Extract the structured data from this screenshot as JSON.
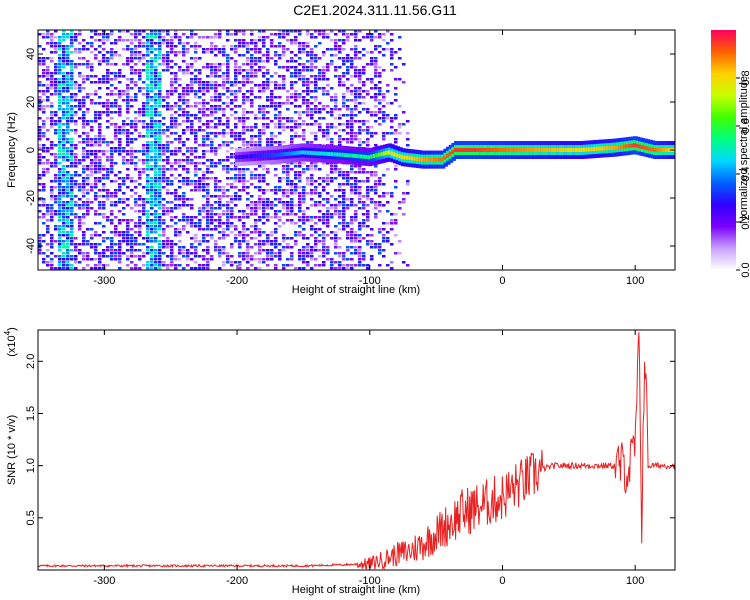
{
  "title": "C2E1.2024.311.11.56.G11",
  "chart_data": [
    {
      "type": "heatmap",
      "name": "spectrogram",
      "xlabel": "Height of straight line (km)",
      "ylabel": "Frequency (Hz)",
      "xlim": [
        -350,
        130
      ],
      "ylim": [
        -50,
        50
      ],
      "xticks": [
        "-300",
        "-200",
        "-100",
        "0",
        "100"
      ],
      "yticks": [
        "-40",
        "-20",
        "0",
        "20",
        "40"
      ],
      "colorbar": {
        "label": "Normalized spectral amplitude",
        "range": [
          0.0,
          1.0
        ],
        "ticks": [
          "0.0",
          "0.2",
          "0.4",
          "0.6",
          "0.8"
        ],
        "colors": [
          "#ffffff",
          "#c8a0ff",
          "#7a00ff",
          "#3000ff",
          "#0060ff",
          "#00d8ff",
          "#00ff80",
          "#40ff00",
          "#c8ff00",
          "#ffd000",
          "#ff6000",
          "#ff0060"
        ]
      },
      "signal_track": [
        {
          "x": -200,
          "y": -3,
          "amp": 0.25
        },
        {
          "x": -170,
          "y": -2,
          "amp": 0.35
        },
        {
          "x": -150,
          "y": -1,
          "amp": 0.45
        },
        {
          "x": -120,
          "y": -2,
          "amp": 0.5
        },
        {
          "x": -100,
          "y": -3,
          "amp": 0.55
        },
        {
          "x": -85,
          "y": -1,
          "amp": 0.75
        },
        {
          "x": -75,
          "y": -3,
          "amp": 0.8
        },
        {
          "x": -60,
          "y": -4,
          "amp": 0.85
        },
        {
          "x": -45,
          "y": -4,
          "amp": 0.9
        },
        {
          "x": -35,
          "y": 0,
          "amp": 0.95
        },
        {
          "x": -20,
          "y": 0,
          "amp": 0.95
        },
        {
          "x": 0,
          "y": 0,
          "amp": 0.9
        },
        {
          "x": 30,
          "y": 0,
          "amp": 0.85
        },
        {
          "x": 60,
          "y": 0,
          "amp": 0.8
        },
        {
          "x": 85,
          "y": 1,
          "amp": 0.85
        },
        {
          "x": 100,
          "y": 2,
          "amp": 0.95
        },
        {
          "x": 115,
          "y": 0,
          "amp": 0.9
        },
        {
          "x": 130,
          "y": 0,
          "amp": 0.8
        }
      ]
    },
    {
      "type": "line",
      "name": "snr",
      "xlabel": "Height of straight line (km)",
      "ylabel": "SNR (10 * v/v)",
      "ylabel_multiplier": "(x10",
      "ylabel_exponent": "4",
      "ylabel_multiplier_close": ")",
      "xlim": [
        -350,
        130
      ],
      "ylim": [
        0,
        2.3
      ],
      "xticks": [
        "-300",
        "-200",
        "-100",
        "0",
        "100"
      ],
      "yticks": [
        "0.5",
        "1.0",
        "1.5",
        "2.0"
      ],
      "color": "#e82020",
      "x": [
        -350,
        -300,
        -250,
        -200,
        -150,
        -120,
        -100,
        -90,
        -80,
        -70,
        -60,
        -50,
        -40,
        -30,
        -20,
        -10,
        0,
        10,
        20,
        30,
        40,
        60,
        80,
        90,
        95,
        100,
        103,
        105,
        107,
        110,
        120,
        130
      ],
      "y": [
        0.04,
        0.04,
        0.04,
        0.04,
        0.04,
        0.05,
        0.06,
        0.1,
        0.15,
        0.18,
        0.25,
        0.35,
        0.45,
        0.55,
        0.6,
        0.65,
        0.7,
        0.8,
        0.88,
        0.97,
        1.0,
        1.0,
        1.0,
        1.0,
        0.95,
        1.2,
        2.2,
        0.4,
        2.15,
        1.0,
        1.0,
        1.0
      ]
    }
  ]
}
